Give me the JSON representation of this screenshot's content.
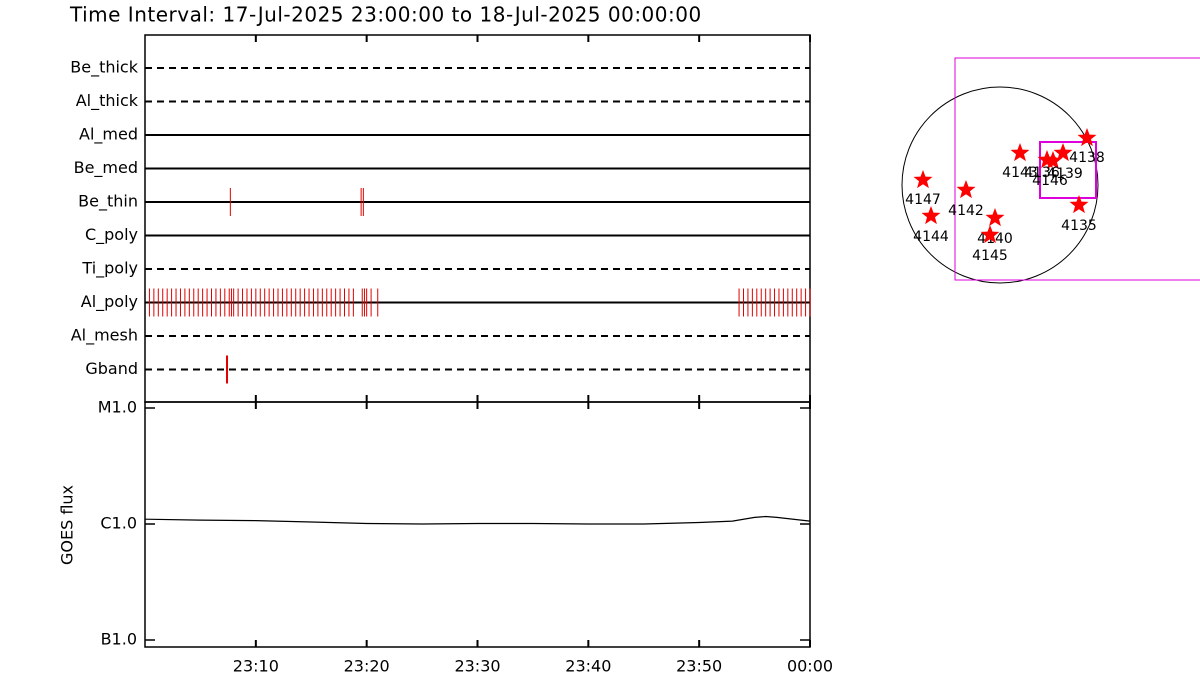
{
  "chart_data": {
    "type": "timeline",
    "title": "Time Interval: 17-Jul-2025 23:00:00 to 18-Jul-2025 00:00:00",
    "xlim": [
      0,
      60
    ],
    "xticks": [
      {
        "value": 10,
        "label": "23:10"
      },
      {
        "value": 20,
        "label": "23:20"
      },
      {
        "value": 30,
        "label": "23:30"
      },
      {
        "value": 40,
        "label": "23:40"
      },
      {
        "value": 50,
        "label": "23:50"
      },
      {
        "value": 60,
        "label": "00:00"
      }
    ],
    "mark_color": "#e00000",
    "filters": [
      {
        "name": "Be_thick",
        "line": "dashed",
        "times": []
      },
      {
        "name": "Al_thick",
        "line": "dashed",
        "times": []
      },
      {
        "name": "Al_med",
        "line": "solid",
        "times": []
      },
      {
        "name": "Be_med",
        "line": "solid",
        "times": []
      },
      {
        "name": "Be_thin",
        "line": "solid",
        "times": [
          7.7,
          19.5,
          19.7
        ]
      },
      {
        "name": "C_poly",
        "line": "solid",
        "times": []
      },
      {
        "name": "Ti_poly",
        "line": "dashed",
        "times": []
      },
      {
        "name": "Al_poly",
        "line": "solid",
        "times": [
          0.4,
          0.8,
          1.2,
          1.6,
          2.0,
          2.4,
          2.8,
          3.2,
          3.6,
          4.0,
          4.4,
          4.8,
          5.2,
          5.6,
          6.0,
          6.4,
          6.8,
          7.2,
          7.6,
          7.8,
          8.0,
          8.4,
          8.8,
          9.2,
          9.6,
          10.0,
          10.4,
          10.8,
          11.2,
          11.6,
          12.0,
          12.4,
          12.8,
          13.2,
          13.6,
          14.0,
          14.4,
          14.8,
          15.2,
          15.6,
          16.0,
          16.4,
          16.8,
          17.2,
          17.6,
          18.0,
          18.4,
          18.8,
          19.6,
          19.8,
          20.0,
          20.4,
          21.0,
          53.6,
          54.0,
          54.4,
          54.8,
          55.2,
          55.6,
          56.0,
          56.4,
          56.8,
          57.2,
          57.6,
          58.0,
          58.4,
          58.8,
          59.2,
          59.6,
          60.0
        ]
      },
      {
        "name": "Al_mesh",
        "line": "dashed",
        "times": []
      },
      {
        "name": "Gband",
        "line": "dashed",
        "times": [
          7.4
        ]
      }
    ],
    "goes": {
      "type": "line",
      "ylabel": "GOES flux",
      "log_scale": true,
      "ylim": [
        1e-07,
        1e-05
      ],
      "yticks": [
        {
          "value": 1e-05,
          "label": "M1.0"
        },
        {
          "value": 1e-06,
          "label": "C1.0"
        },
        {
          "value": 1e-07,
          "label": "B1.0"
        }
      ],
      "color": "#000000",
      "x": [
        0,
        5,
        10,
        15,
        20,
        25,
        30,
        35,
        40,
        45,
        50,
        53,
        55,
        56,
        57,
        60
      ],
      "values": [
        1.1e-06,
        1.08e-06,
        1.07e-06,
        1.04e-06,
        1.01e-06,
        1e-06,
        1.01e-06,
        1.01e-06,
        1e-06,
        1e-06,
        1.03e-06,
        1.06e-06,
        1.14e-06,
        1.16e-06,
        1.14e-06,
        1.06e-06
      ]
    },
    "sun_map": {
      "region_color": "#ff0000",
      "fov_color": "#dd00dd",
      "regions": [
        "4138",
        "4139",
        "4143",
        "4146",
        "4136",
        "4147",
        "4142",
        "4144",
        "4140",
        "4145",
        "4135"
      ]
    }
  }
}
